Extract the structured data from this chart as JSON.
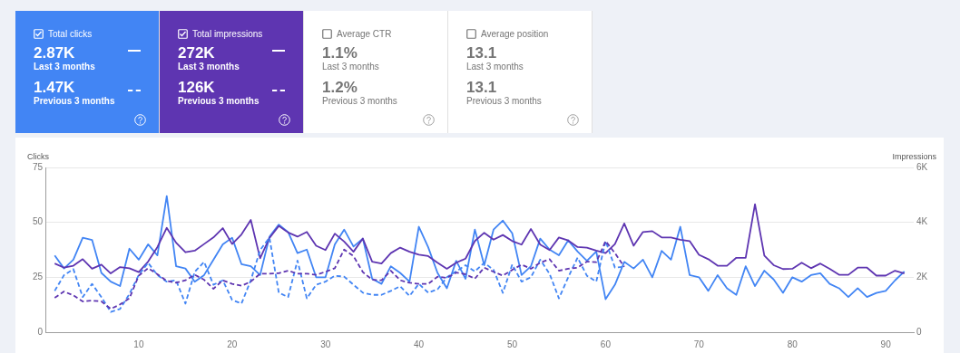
{
  "chart_data": [
    {
      "type": "other",
      "colors": [
        "#4285f4",
        "#5e35b1",
        null,
        null
      ],
      "annotations": [
        "Total clicks",
        "2.87K",
        "Last 3 months",
        "1.47K",
        "Previous 3 months",
        "Total impressions",
        "272K",
        "Last 3 months",
        "126K",
        "Previous 3 months",
        "Average CTR",
        "1.1%",
        "Last 3 months",
        "1.2%",
        "Previous 3 months",
        "Average position",
        "13.1",
        "Last 3 months",
        "13.1",
        "Previous 3 months"
      ]
    },
    {
      "type": "line",
      "ylabel": "Clicks",
      "y2label": "Impressions",
      "grid": "y",
      "legend": false,
      "marker": "none",
      "xlim": [
        0,
        93
      ],
      "xticks": [
        10,
        20,
        30,
        40,
        50,
        60,
        70,
        80,
        90
      ],
      "ylim": [
        0,
        75
      ],
      "yticks": [
        0,
        25,
        50,
        75
      ],
      "y2lim": [
        0,
        6000
      ],
      "y2ticks": [
        {
          "value": 0,
          "label": "0"
        },
        {
          "value": 2000,
          "label": "2K"
        },
        {
          "value": 4000,
          "label": "4K"
        },
        {
          "value": 6000,
          "label": "6K"
        }
      ],
      "x": [
        1,
        2,
        3,
        4,
        5,
        6,
        7,
        8,
        9,
        10,
        11,
        12,
        13,
        14,
        15,
        16,
        17,
        18,
        19,
        20,
        21,
        22,
        23,
        24,
        25,
        26,
        27,
        28,
        29,
        30,
        31,
        32,
        33,
        34,
        35,
        36,
        37,
        38,
        39,
        40,
        41,
        42,
        43,
        44,
        45,
        46,
        47,
        48,
        49,
        50,
        51,
        52,
        53,
        54,
        55,
        56,
        57,
        58,
        59,
        60,
        61,
        62,
        63,
        64,
        65,
        66,
        67,
        68,
        69,
        70,
        71,
        72,
        73,
        74,
        75,
        76,
        77,
        78,
        79,
        80,
        81,
        82,
        83,
        84,
        85,
        86,
        87,
        88,
        89,
        90,
        91,
        92
      ],
      "series": [
        {
          "color": "#5e35b1",
          "axis": "y2",
          "line_style": "dashed",
          "x": [
            1,
            2,
            3,
            4,
            5,
            6,
            7,
            8,
            9,
            10,
            11,
            12,
            13,
            14,
            15,
            16,
            17,
            18,
            19,
            20,
            21,
            22,
            23,
            24,
            25,
            26,
            27,
            28,
            29,
            30,
            31,
            32,
            33,
            34,
            35,
            36,
            37,
            38,
            39,
            40,
            41,
            42,
            43,
            44,
            45,
            46,
            47,
            48,
            49,
            50,
            51,
            52,
            53,
            54,
            55,
            56,
            57,
            58,
            59,
            60,
            61,
            62
          ],
          "values": [
            1250,
            1480,
            1340,
            1120,
            1150,
            1120,
            850,
            1010,
            1230,
            2060,
            2330,
            2110,
            1870,
            1800,
            1890,
            2090,
            1910,
            1580,
            1890,
            1760,
            1690,
            1840,
            2130,
            2130,
            2150,
            2240,
            2130,
            2130,
            2090,
            2200,
            2330,
            3010,
            2770,
            2190,
            1910,
            1890,
            2240,
            1890,
            1800,
            1760,
            1760,
            2020,
            1980,
            2170,
            2110,
            1950,
            2350,
            2200,
            2060,
            2270,
            2460,
            2310,
            2530,
            2660,
            2240,
            2310,
            2350,
            2570,
            2550,
            3320,
            2880,
            2380
          ]
        },
        {
          "color": "#4285f4",
          "axis": "y",
          "line_style": "dashed",
          "x": [
            1,
            2,
            3,
            4,
            5,
            6,
            7,
            8,
            9,
            10,
            11,
            12,
            13,
            14,
            15,
            16,
            17,
            18,
            19,
            20,
            21,
            22,
            23,
            24,
            25,
            26,
            27,
            28,
            29,
            30,
            31,
            32,
            33,
            34,
            35,
            36,
            37,
            38,
            39,
            40,
            41,
            42,
            43,
            44,
            45,
            46,
            47,
            48,
            49,
            50,
            51,
            52,
            53,
            54,
            55,
            56,
            57,
            58,
            59,
            60,
            61,
            62
          ],
          "values": [
            18.8,
            26,
            28.7,
            16,
            22,
            16,
            9.2,
            10.6,
            17.4,
            26,
            31.6,
            26,
            23,
            23.6,
            13,
            27.5,
            32,
            21.6,
            23.6,
            14.7,
            13,
            23.6,
            37.4,
            43,
            18,
            16,
            32.6,
            15.4,
            21.6,
            23,
            25.7,
            25.3,
            21.6,
            18,
            17,
            17,
            18.8,
            20.9,
            16.5,
            22,
            18,
            19.5,
            25,
            27.7,
            30.5,
            27.7,
            31.6,
            28.4,
            17.9,
            30.8,
            23,
            25,
            33,
            26.6,
            15.4,
            25,
            33.9,
            25.7,
            23,
            41.5,
            29.4,
            29.8
          ]
        },
        {
          "color": "#5e35b1",
          "axis": "y2",
          "line_style": "solid",
          "values": [
            2500,
            2350,
            2420,
            2660,
            2310,
            2460,
            2140,
            2370,
            2330,
            2190,
            2570,
            3100,
            3800,
            3260,
            2910,
            2970,
            3210,
            3450,
            3790,
            3210,
            3560,
            4090,
            2690,
            3430,
            3870,
            3630,
            3480,
            3650,
            3150,
            2990,
            3590,
            3300,
            2930,
            3410,
            2570,
            2500,
            2880,
            3080,
            2930,
            2820,
            2770,
            2530,
            2310,
            2530,
            2680,
            3320,
            3620,
            3370,
            3540,
            3320,
            3190,
            3760,
            3190,
            2990,
            3450,
            3340,
            3100,
            3080,
            2970,
            2880,
            3210,
            3960,
            3150,
            3650,
            3680,
            3450,
            3450,
            3370,
            3320,
            2820,
            2660,
            2420,
            2420,
            2710,
            2710,
            4660,
            2790,
            2440,
            2300,
            2310,
            2530,
            2330,
            2500,
            2310,
            2090,
            2090,
            2350,
            2350,
            2060,
            2060,
            2240,
            2140
          ]
        },
        {
          "color": "#4285f4",
          "axis": "y",
          "line_style": "solid",
          "values": [
            34.9,
            29,
            33,
            43,
            42,
            27,
            23,
            21,
            38,
            33,
            40,
            35,
            62,
            30,
            29,
            23,
            26,
            33,
            40,
            43,
            31,
            30,
            26,
            43.5,
            49,
            45.6,
            36,
            37.6,
            25,
            25,
            40,
            46.7,
            39,
            42.6,
            24.3,
            22,
            30,
            27,
            23,
            48,
            38.7,
            27,
            20,
            32.5,
            24.3,
            46.7,
            30.5,
            46.7,
            50.8,
            45,
            26,
            30,
            42.6,
            37.6,
            35,
            41.8,
            36.7,
            32.5,
            36.7,
            15,
            21.6,
            32,
            29,
            33,
            25,
            37,
            33,
            48,
            26,
            25,
            18.8,
            26,
            20,
            17,
            30,
            21,
            28,
            24,
            17.9,
            25,
            23,
            26,
            26.8,
            22,
            20,
            16,
            20,
            16,
            17.9,
            18.8,
            23.6,
            27.7
          ]
        }
      ]
    }
  ]
}
